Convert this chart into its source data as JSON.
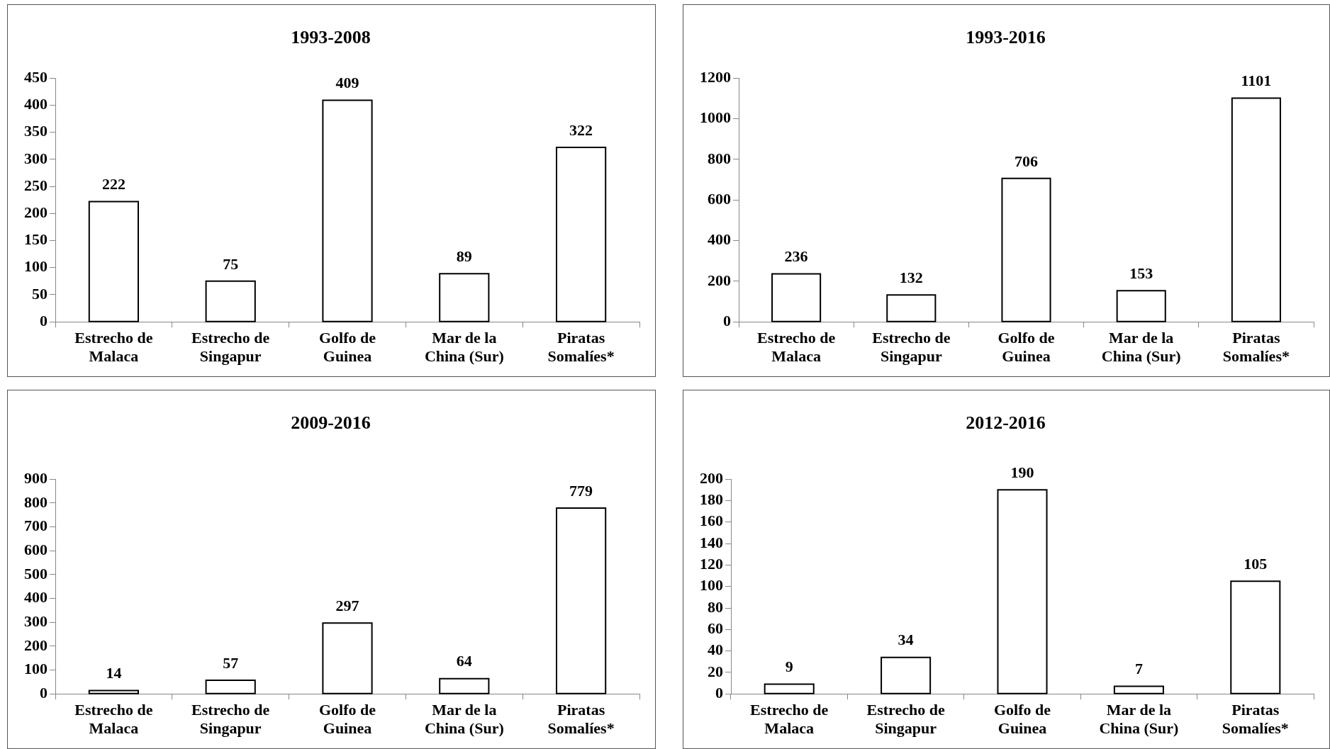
{
  "chart_data": [
    {
      "type": "bar",
      "title": "1993-2008",
      "categories": [
        "Estrecho de Malaca",
        "Estrecho de Singapur",
        "Golfo de Guinea",
        "Mar de la China (Sur)",
        "Piratas Somalíes*"
      ],
      "values": [
        222,
        75,
        409,
        89,
        322
      ],
      "color": "#ffffff",
      "ylim": [
        0,
        450
      ],
      "yticks": [
        0,
        50,
        100,
        150,
        200,
        250,
        300,
        350,
        400,
        450
      ],
      "grid": false,
      "data_labels": true
    },
    {
      "type": "bar",
      "title": "1993-2016",
      "categories": [
        "Estrecho de Malaca",
        "Estrecho de Singapur",
        "Golfo de Guinea",
        "Mar de la China (Sur)",
        "Piratas Somalíes*"
      ],
      "values": [
        236,
        132,
        706,
        153,
        1101
      ],
      "color": "#ffffff",
      "ylim": [
        0,
        1200
      ],
      "yticks": [
        0,
        200,
        400,
        600,
        800,
        1000,
        1200
      ],
      "grid": false,
      "data_labels": true
    },
    {
      "type": "bar",
      "title": "2009-2016",
      "categories": [
        "Estrecho de Malaca",
        "Estrecho de Singapur",
        "Golfo de Guinea",
        "Mar de la China (Sur)",
        "Piratas Somalíes*"
      ],
      "values": [
        14,
        57,
        297,
        64,
        779
      ],
      "color": "#ffffff",
      "ylim": [
        0,
        900
      ],
      "yticks": [
        0,
        100,
        200,
        300,
        400,
        500,
        600,
        700,
        800,
        900
      ],
      "grid": false,
      "data_labels": true
    },
    {
      "type": "bar",
      "title": "2012-2016",
      "categories": [
        "Estrecho de Malaca",
        "Estrecho de Singapur",
        "Golfo de Guinea",
        "Mar de la China (Sur)",
        "Piratas Somalíes*"
      ],
      "values": [
        9,
        34,
        190,
        7,
        105
      ],
      "color": "#ffffff",
      "ylim": [
        0,
        200
      ],
      "yticks": [
        0,
        20,
        40,
        60,
        80,
        100,
        120,
        140,
        160,
        180,
        200
      ],
      "grid": false,
      "data_labels": true
    }
  ]
}
